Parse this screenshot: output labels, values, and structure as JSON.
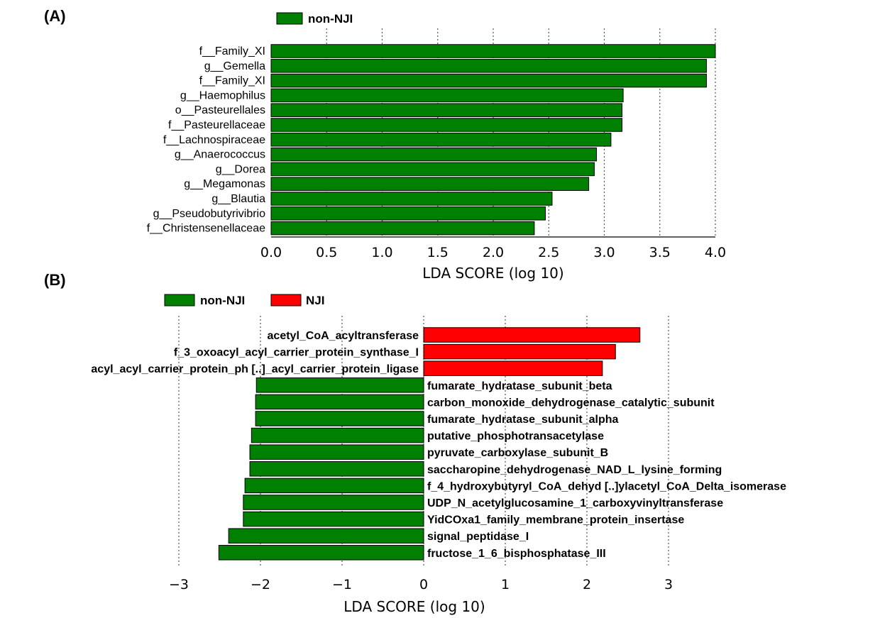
{
  "chart_data": [
    {
      "panel": "(A)",
      "type": "bar",
      "orientation": "horizontal",
      "legend": [
        {
          "name": "non-NJI",
          "color": "#008000"
        }
      ],
      "categories": [
        "f__Family_XI",
        "g__Gemella",
        "f__Family_XI",
        "g__Haemophilus",
        "o__Pasteurellales",
        "f__Pasteurellaceae",
        "f__Lachnospiraceae",
        "g__Anaerococcus",
        "g__Dorea",
        "g__Megamonas",
        "g__Blautia",
        "g__Pseudobutyrivibrio",
        "f__Christensenellaceae"
      ],
      "values": [
        4.0,
        3.92,
        3.92,
        3.17,
        3.16,
        3.16,
        3.06,
        2.93,
        2.91,
        2.86,
        2.53,
        2.47,
        2.37
      ],
      "colors": [
        "#008000",
        "#008000",
        "#008000",
        "#008000",
        "#008000",
        "#008000",
        "#008000",
        "#008000",
        "#008000",
        "#008000",
        "#008000",
        "#008000",
        "#008000"
      ],
      "xlim": [
        0,
        4.0
      ],
      "xticks": [
        "0.0",
        "0.5",
        "1.0",
        "1.5",
        "2.0",
        "2.5",
        "3.0",
        "3.5",
        "4.0"
      ],
      "xtick_values": [
        0,
        0.5,
        1.0,
        1.5,
        2.0,
        2.5,
        3.0,
        3.5,
        4.0
      ],
      "xlabel": "LDA SCORE (log 10)",
      "grid": true
    },
    {
      "panel": "(B)",
      "type": "bar",
      "orientation": "horizontal",
      "legend": [
        {
          "name": "non-NJI",
          "color": "#008000"
        },
        {
          "name": "NJI",
          "color": "#ff0000"
        }
      ],
      "categories": [
        "acetyl_CoA_acyltransferase",
        "f_3_oxoacyl_acyl_carrier_protein_synthase_I",
        "acyl_acyl_carrier_protein_ph [..]_acyl_carrier_protein_ligase",
        "fumarate_hydratase_subunit_beta",
        "carbon_monoxide_dehydrogenase_catalytic_subunit",
        "fumarate_hydratase_subunit_alpha",
        "putative_phosphotransacetylase",
        "pyruvate_carboxylase_subunit_B",
        "saccharopine_dehydrogenase_NAD_L_lysine_forming",
        "f_4_hydroxybutyryl_CoA_dehyd [..]ylacetyl_CoA_Delta_isomerase",
        "UDP_N_acetylglucosamine_1_carboxyvinyltransferase",
        "YidCOxa1_family_membrane_protein_insertase",
        "signal_peptidase_I",
        "fructose_1_6_bisphosphatase_III"
      ],
      "values": [
        2.65,
        2.35,
        2.19,
        -2.05,
        -2.06,
        -2.06,
        -2.11,
        -2.13,
        -2.13,
        -2.19,
        -2.21,
        -2.21,
        -2.39,
        -2.51
      ],
      "colors": [
        "#ff0000",
        "#ff0000",
        "#ff0000",
        "#008000",
        "#008000",
        "#008000",
        "#008000",
        "#008000",
        "#008000",
        "#008000",
        "#008000",
        "#008000",
        "#008000",
        "#008000"
      ],
      "xlim": [
        -3.05,
        3.1
      ],
      "xticks": [
        "−3",
        "−2",
        "−1",
        "0",
        "1",
        "2",
        "3"
      ],
      "xtick_values": [
        -3,
        -2,
        -1,
        0,
        1,
        2,
        3
      ],
      "xlabel": "LDA SCORE (log 10)",
      "grid": true
    }
  ]
}
